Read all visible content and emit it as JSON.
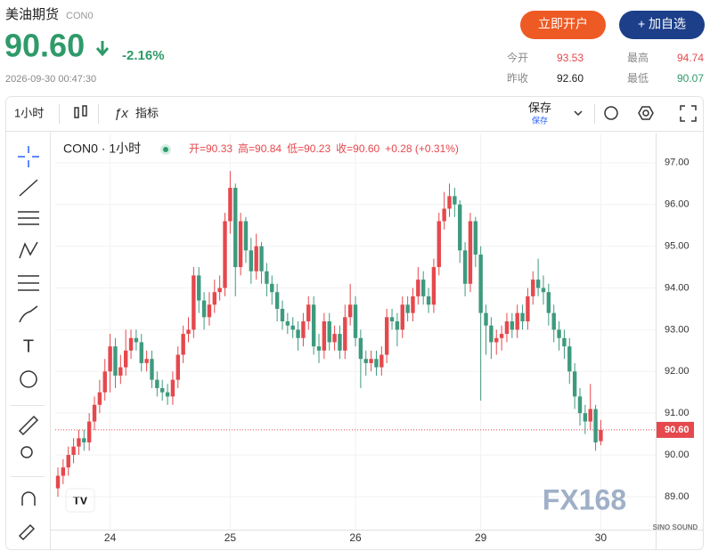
{
  "header": {
    "name": "美油期货",
    "code": "CON0",
    "price": "90.60",
    "change": "-2.16%",
    "time": "2026-09-30 00:47:30",
    "buttons": [
      "立即开户",
      "+ 加自选"
    ],
    "stats": [
      {
        "label": "今开",
        "value": "93.53"
      },
      {
        "label": "最高",
        "value": "94.74"
      },
      {
        "label": "昨收",
        "value": "92.60"
      },
      {
        "label": "最低",
        "value": "90.07"
      }
    ]
  },
  "toolbar": {
    "interval": "1小时",
    "indicators": "指标",
    "save": "保存",
    "save_sub": "保存"
  },
  "chart_data": {
    "type": "candlestick",
    "title": "CON0 · 1小时",
    "legend": [
      "开=90.33",
      "高=90.84",
      "低=90.23",
      "收=90.60",
      "+0.28 (+0.31%)"
    ],
    "up_color": "#e5484d",
    "down_color": "#3e9a7e",
    "categories": [
      null,
      null,
      null,
      null,
      null,
      null,
      null,
      null,
      null,
      null,
      "24",
      null,
      null,
      null,
      null,
      null,
      null,
      null,
      null,
      null,
      null,
      null,
      null,
      null,
      null,
      null,
      null,
      null,
      null,
      null,
      null,
      null,
      null,
      "25",
      null,
      null,
      null,
      null,
      null,
      null,
      null,
      null,
      null,
      null,
      null,
      null,
      null,
      null,
      null,
      null,
      null,
      null,
      null,
      null,
      null,
      null,
      null,
      "26",
      null,
      null,
      null,
      null,
      null,
      null,
      null,
      null,
      null,
      null,
      null,
      null,
      null,
      null,
      null,
      null,
      null,
      null,
      null,
      null,
      null,
      null,
      null,
      "29",
      null,
      null,
      null,
      null,
      null,
      null,
      null,
      null,
      null,
      null,
      null,
      null,
      null,
      null,
      null,
      null,
      null,
      null,
      null,
      null,
      null,
      null,
      "30"
    ],
    "open": [
      89.2,
      89.5,
      89.7,
      90.0,
      90.2,
      90.4,
      90.3,
      90.8,
      91.2,
      91.5,
      92.0,
      92.6,
      91.9,
      92.1,
      92.5,
      92.8,
      92.7,
      92.2,
      92.3,
      91.8,
      91.6,
      91.5,
      91.4,
      91.8,
      92.4,
      92.9,
      93.0,
      94.3,
      93.7,
      93.3,
      93.6,
      93.9,
      94.0,
      95.6,
      96.4,
      94.5,
      95.6,
      94.9,
      94.4,
      95.0,
      94.4,
      94.1,
      93.9,
      93.5,
      93.2,
      93.1,
      93.0,
      92.8,
      93.2,
      93.6,
      92.6,
      92.5,
      93.2,
      92.7,
      92.9,
      92.5,
      93.3,
      93.6,
      92.8,
      92.3,
      92.2,
      92.3,
      92.1,
      92.4,
      93.3,
      93.2,
      93.0,
      93.6,
      93.4,
      93.8,
      94.2,
      93.8,
      93.6,
      94.5,
      95.6,
      95.9,
      96.2,
      96.0,
      94.9,
      94.1,
      95.6,
      94.8,
      93.4,
      93.1,
      92.7,
      92.8,
      92.9,
      93.2,
      93.0,
      93.4,
      93.2,
      93.8,
      94.2,
      94.0,
      93.9,
      93.4,
      93.0,
      92.8,
      92.6,
      92.0,
      91.4,
      91.0,
      90.8,
      91.1,
      90.33
    ],
    "high": [
      89.7,
      89.9,
      90.2,
      90.4,
      90.6,
      90.6,
      91.0,
      91.4,
      91.8,
      92.3,
      92.9,
      92.8,
      92.4,
      93.0,
      93.0,
      93.0,
      92.9,
      92.5,
      92.5,
      92.0,
      91.8,
      91.7,
      92.0,
      92.6,
      93.1,
      93.3,
      94.5,
      94.5,
      93.9,
      93.9,
      94.2,
      94.3,
      95.8,
      96.8,
      96.5,
      95.8,
      95.7,
      95.2,
      95.3,
      95.1,
      94.6,
      94.3,
      94.1,
      93.7,
      93.4,
      93.3,
      93.2,
      93.4,
      93.8,
      93.8,
      92.9,
      93.4,
      93.4,
      93.1,
      93.1,
      93.6,
      94.1,
      93.8,
      93.0,
      92.5,
      92.5,
      92.5,
      92.6,
      93.5,
      93.5,
      93.4,
      93.8,
      93.8,
      94.0,
      94.5,
      94.4,
      94.0,
      94.7,
      95.8,
      96.3,
      96.5,
      96.4,
      96.1,
      95.1,
      95.8,
      95.7,
      95.0,
      93.6,
      93.3,
      93.0,
      93.1,
      93.4,
      93.4,
      93.6,
      93.6,
      94.0,
      94.4,
      94.7,
      94.3,
      94.1,
      93.6,
      93.2,
      93.0,
      92.8,
      92.2,
      91.6,
      91.2,
      91.7,
      91.2,
      90.84
    ],
    "low": [
      89.0,
      89.3,
      89.5,
      89.8,
      90.0,
      90.1,
      90.1,
      90.6,
      91.0,
      91.3,
      91.5,
      91.6,
      91.7,
      91.9,
      92.3,
      92.5,
      92.0,
      92.0,
      91.6,
      91.4,
      91.3,
      91.2,
      91.2,
      91.6,
      92.2,
      92.7,
      92.8,
      93.4,
      93.0,
      93.1,
      93.4,
      93.7,
      93.8,
      95.3,
      93.8,
      94.3,
      94.6,
      94.1,
      94.2,
      94.1,
      93.8,
      93.6,
      93.2,
      93.0,
      92.9,
      92.8,
      92.5,
      92.6,
      93.0,
      92.4,
      92.2,
      92.3,
      92.5,
      92.5,
      92.3,
      92.3,
      93.1,
      92.6,
      91.6,
      91.9,
      92.0,
      91.9,
      91.9,
      92.2,
      93.0,
      92.6,
      92.8,
      93.2,
      93.2,
      93.6,
      93.6,
      93.4,
      93.4,
      94.3,
      95.4,
      95.7,
      95.7,
      94.6,
      93.8,
      93.9,
      94.5,
      91.3,
      92.4,
      92.3,
      92.4,
      92.5,
      92.7,
      92.8,
      92.8,
      93.0,
      93.0,
      93.6,
      93.8,
      93.6,
      93.1,
      92.7,
      92.5,
      92.3,
      91.7,
      91.1,
      90.7,
      90.5,
      90.6,
      90.1,
      90.23
    ],
    "close": [
      89.5,
      89.7,
      90.0,
      90.2,
      90.4,
      90.3,
      90.8,
      91.2,
      91.5,
      92.0,
      92.6,
      91.9,
      92.1,
      92.5,
      92.8,
      92.7,
      92.2,
      92.3,
      91.8,
      91.6,
      91.5,
      91.4,
      91.8,
      92.4,
      92.9,
      93.0,
      94.3,
      93.7,
      93.3,
      93.6,
      93.9,
      94.0,
      95.6,
      96.4,
      94.5,
      95.6,
      94.9,
      94.4,
      95.0,
      94.4,
      94.1,
      93.9,
      93.5,
      93.2,
      93.1,
      93.0,
      92.8,
      93.2,
      93.6,
      92.6,
      92.5,
      93.2,
      92.7,
      92.9,
      92.5,
      93.3,
      93.6,
      92.8,
      92.3,
      92.2,
      92.3,
      92.1,
      92.4,
      93.3,
      93.2,
      93.0,
      93.6,
      93.4,
      93.8,
      94.2,
      93.8,
      93.6,
      94.5,
      95.6,
      95.9,
      96.2,
      96.0,
      94.9,
      94.1,
      95.6,
      94.8,
      93.4,
      93.1,
      92.7,
      92.8,
      92.9,
      93.2,
      93.0,
      93.4,
      93.2,
      93.8,
      94.2,
      94.0,
      93.9,
      93.4,
      93.0,
      92.8,
      92.6,
      92.0,
      91.4,
      91.0,
      90.8,
      91.1,
      90.3,
      90.6
    ],
    "ylim": [
      88.21,
      97.7
    ],
    "yticks": [
      {
        "value": 89,
        "label": "89.00"
      },
      {
        "value": 90,
        "label": "90.00"
      },
      {
        "value": 91,
        "label": "91.00"
      },
      {
        "value": 92,
        "label": "92.00"
      },
      {
        "value": 93,
        "label": "93.00"
      },
      {
        "value": 94,
        "label": "94.00"
      },
      {
        "value": 95,
        "label": "95.00"
      },
      {
        "value": 96,
        "label": "96.00"
      },
      {
        "value": 97,
        "label": "97.00"
      }
    ],
    "last_price": {
      "value": 90.6,
      "label": "90.60"
    },
    "watermark": "FX168",
    "watermark_sub": "SINO SOUND"
  }
}
